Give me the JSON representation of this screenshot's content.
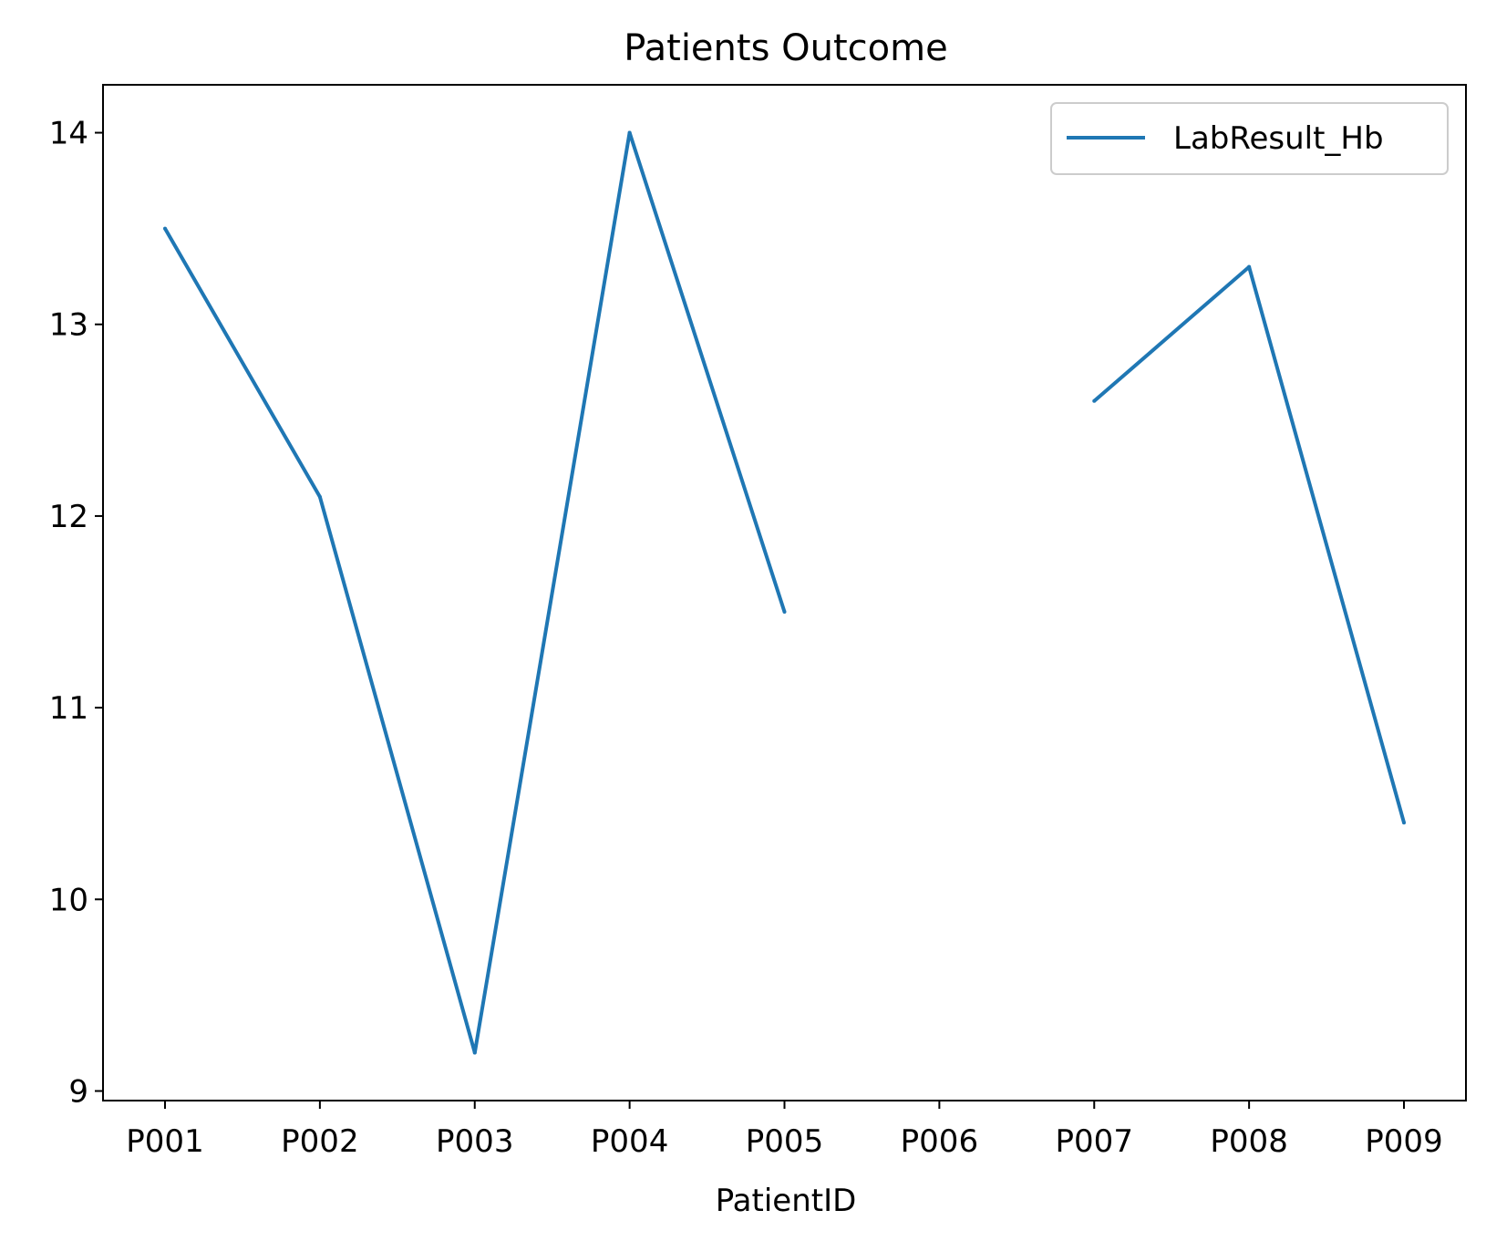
{
  "chart_data": {
    "type": "line",
    "title": "Patients Outcome",
    "xlabel": "PatientID",
    "ylabel": "",
    "categories": [
      "P001",
      "P002",
      "P003",
      "P004",
      "P005",
      "P006",
      "P007",
      "P008",
      "P009"
    ],
    "series": [
      {
        "name": "LabResult_Hb",
        "color": "#1f77b4",
        "values": [
          13.5,
          12.1,
          9.2,
          14.0,
          11.5,
          null,
          12.6,
          13.3,
          10.4
        ]
      }
    ],
    "ylim": [
      8.95,
      14.25
    ],
    "yticks": [
      9,
      10,
      11,
      12,
      13,
      14
    ],
    "grid": false,
    "legend_position": "top-right"
  }
}
